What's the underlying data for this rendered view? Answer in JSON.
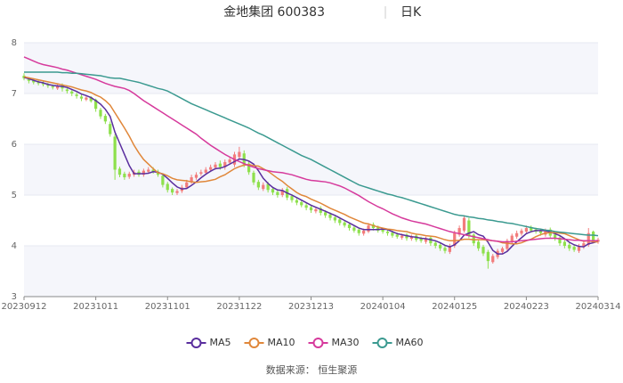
{
  "chart_data": {
    "type": "candlestick",
    "title": "金地集团 600383",
    "period": "日K",
    "source": "数据来源： 恒生聚源",
    "categories": [
      "20230912",
      null,
      null,
      null,
      null,
      null,
      null,
      null,
      null,
      null,
      null,
      null,
      null,
      null,
      null,
      "20231011",
      null,
      null,
      null,
      null,
      null,
      null,
      null,
      null,
      null,
      null,
      null,
      null,
      null,
      null,
      "20231101",
      null,
      null,
      null,
      null,
      null,
      null,
      null,
      null,
      null,
      null,
      null,
      null,
      null,
      null,
      "20231122",
      null,
      null,
      null,
      null,
      null,
      null,
      null,
      null,
      null,
      null,
      null,
      null,
      null,
      null,
      "20231213",
      null,
      null,
      null,
      null,
      null,
      null,
      null,
      null,
      null,
      null,
      null,
      null,
      null,
      null,
      "20240104",
      null,
      null,
      null,
      null,
      null,
      null,
      null,
      null,
      null,
      null,
      null,
      null,
      null,
      null,
      "20240125",
      null,
      null,
      null,
      null,
      null,
      null,
      null,
      null,
      null,
      null,
      null,
      null,
      null,
      null,
      "20240223",
      null,
      null,
      null,
      null,
      null,
      null,
      null,
      null,
      null,
      null,
      null,
      null,
      null,
      null,
      "20240314"
    ],
    "open": [
      7.35,
      7.28,
      7.26,
      7.22,
      7.2,
      7.17,
      7.14,
      7.1,
      7.16,
      7.08,
      7.04,
      6.98,
      6.94,
      6.88,
      6.93,
      6.88,
      6.68,
      6.56,
      6.4,
      6.15,
      5.52,
      5.42,
      5.36,
      5.4,
      5.46,
      5.4,
      5.46,
      5.5,
      5.46,
      5.38,
      5.22,
      5.12,
      5.04,
      5.08,
      5.15,
      5.25,
      5.34,
      5.42,
      5.44,
      5.5,
      5.54,
      5.62,
      5.55,
      5.64,
      5.6,
      5.75,
      5.82,
      5.62,
      5.44,
      5.26,
      5.12,
      5.22,
      5.12,
      5.06,
      5.0,
      5.12,
      4.98,
      4.9,
      4.86,
      4.8,
      4.76,
      4.68,
      4.74,
      4.66,
      4.62,
      4.56,
      4.52,
      4.46,
      4.42,
      4.36,
      4.32,
      4.24,
      4.28,
      4.42,
      4.36,
      4.32,
      4.28,
      4.26,
      4.22,
      4.16,
      4.22,
      4.14,
      4.2,
      4.14,
      4.08,
      4.16,
      4.06,
      4.02,
      3.96,
      3.88,
      4.0,
      4.22,
      4.3,
      4.5,
      4.22,
      4.08,
      3.98,
      3.88,
      3.68,
      3.78,
      3.88,
      3.94,
      4.08,
      4.18,
      4.24,
      4.28,
      4.36,
      4.32,
      4.3,
      4.22,
      4.32,
      4.22,
      4.16,
      4.08,
      4.02,
      3.98,
      3.9,
      3.98,
      4.02,
      4.28,
      4.08
    ],
    "close": [
      7.3,
      7.25,
      7.22,
      7.2,
      7.18,
      7.15,
      7.12,
      7.15,
      7.1,
      7.05,
      7.0,
      6.95,
      6.9,
      6.92,
      6.85,
      6.7,
      6.55,
      6.45,
      6.2,
      5.5,
      5.4,
      5.35,
      5.42,
      5.45,
      5.4,
      5.48,
      5.5,
      5.45,
      5.4,
      5.2,
      5.1,
      5.05,
      5.08,
      5.15,
      5.25,
      5.35,
      5.4,
      5.45,
      5.5,
      5.55,
      5.6,
      5.55,
      5.65,
      5.7,
      5.8,
      5.85,
      5.6,
      5.45,
      5.25,
      5.15,
      5.2,
      5.1,
      5.05,
      5.0,
      5.1,
      4.95,
      4.9,
      4.85,
      4.8,
      4.75,
      4.7,
      4.72,
      4.65,
      4.6,
      4.55,
      4.5,
      4.45,
      4.4,
      4.35,
      4.3,
      4.25,
      4.3,
      4.4,
      4.35,
      4.3,
      4.28,
      4.25,
      4.2,
      4.18,
      4.2,
      4.15,
      4.18,
      4.12,
      4.1,
      4.15,
      4.05,
      4.0,
      3.95,
      3.9,
      4.0,
      4.25,
      4.35,
      4.55,
      4.2,
      4.05,
      3.95,
      3.85,
      3.7,
      3.8,
      3.9,
      3.95,
      4.1,
      4.2,
      4.25,
      4.3,
      4.35,
      4.3,
      4.28,
      4.25,
      4.3,
      4.2,
      4.15,
      4.05,
      4.0,
      3.95,
      3.92,
      4.0,
      4.05,
      4.25,
      4.1,
      4.12
    ],
    "low": [
      7.26,
      7.2,
      7.18,
      7.16,
      7.14,
      7.11,
      7.08,
      7.07,
      7.04,
      7.0,
      6.95,
      6.9,
      6.85,
      6.85,
      6.82,
      6.64,
      6.5,
      6.4,
      6.15,
      5.3,
      5.35,
      5.3,
      5.32,
      5.36,
      5.36,
      5.36,
      5.42,
      5.42,
      5.36,
      5.15,
      5.05,
      5.0,
      5.0,
      5.04,
      5.12,
      5.22,
      5.3,
      5.38,
      5.4,
      5.46,
      5.5,
      5.5,
      5.5,
      5.6,
      5.55,
      5.7,
      5.55,
      5.4,
      5.2,
      5.1,
      5.08,
      5.05,
      5.0,
      4.95,
      4.96,
      4.9,
      4.85,
      4.8,
      4.76,
      4.7,
      4.65,
      4.64,
      4.6,
      4.55,
      4.5,
      4.45,
      4.4,
      4.36,
      4.3,
      4.26,
      4.2,
      4.2,
      4.25,
      4.3,
      4.26,
      4.24,
      4.2,
      4.16,
      4.14,
      4.12,
      4.1,
      4.1,
      4.08,
      4.06,
      4.04,
      4.0,
      3.95,
      3.9,
      3.85,
      3.84,
      3.96,
      4.18,
      4.26,
      4.15,
      4.0,
      3.9,
      3.8,
      3.55,
      3.65,
      3.74,
      3.84,
      3.9,
      4.04,
      4.14,
      4.2,
      4.24,
      4.26,
      4.24,
      4.2,
      4.18,
      4.16,
      4.1,
      4.0,
      3.95,
      3.9,
      3.88,
      3.86,
      3.94,
      3.98,
      4.05,
      4.04
    ],
    "high": [
      7.4,
      7.32,
      7.3,
      7.26,
      7.24,
      7.21,
      7.18,
      7.2,
      7.2,
      7.12,
      7.08,
      7.02,
      6.98,
      6.96,
      6.95,
      6.9,
      6.72,
      6.6,
      6.45,
      6.2,
      5.56,
      5.46,
      5.46,
      5.5,
      5.5,
      5.52,
      5.55,
      5.55,
      5.5,
      5.42,
      5.26,
      5.15,
      5.12,
      5.2,
      5.3,
      5.4,
      5.45,
      5.5,
      5.55,
      5.6,
      5.65,
      5.68,
      5.7,
      5.75,
      5.85,
      5.95,
      5.88,
      5.66,
      5.48,
      5.3,
      5.25,
      5.26,
      5.16,
      5.1,
      5.14,
      5.16,
      5.02,
      4.94,
      4.9,
      4.84,
      4.8,
      4.76,
      4.78,
      4.7,
      4.66,
      4.6,
      4.56,
      4.5,
      4.46,
      4.4,
      4.36,
      4.34,
      4.45,
      4.46,
      4.4,
      4.35,
      4.32,
      4.3,
      4.26,
      4.24,
      4.25,
      4.22,
      4.24,
      4.18,
      4.18,
      4.2,
      4.1,
      4.06,
      4.0,
      4.04,
      4.3,
      4.4,
      4.6,
      4.55,
      4.25,
      4.12,
      4.02,
      3.92,
      3.84,
      3.94,
      3.98,
      4.14,
      4.24,
      4.3,
      4.34,
      4.4,
      4.4,
      4.36,
      4.34,
      4.34,
      4.36,
      4.26,
      4.2,
      4.12,
      4.06,
      4.02,
      4.04,
      4.08,
      4.35,
      4.3,
      4.16
    ],
    "up_color": "#f27c7c",
    "down_color": "#8ee04c",
    "series": [
      {
        "name": "MA5",
        "color": "#5a2e9e",
        "values": [
          7.32,
          7.29,
          7.26,
          7.23,
          7.21,
          7.18,
          7.16,
          7.15,
          7.14,
          7.12,
          7.08,
          7.04,
          6.99,
          6.96,
          6.92,
          6.86,
          6.79,
          6.69,
          6.55,
          6.24,
          6.02,
          5.8,
          5.58,
          5.42,
          5.42,
          5.42,
          5.43,
          5.46,
          5.45,
          5.41,
          5.33,
          5.24,
          5.16,
          5.12,
          5.13,
          5.19,
          5.26,
          5.34,
          5.41,
          5.47,
          5.52,
          5.53,
          5.56,
          5.61,
          5.66,
          5.71,
          5.7,
          5.67,
          5.61,
          5.48,
          5.33,
          5.23,
          5.15,
          5.1,
          5.09,
          5.04,
          5.0,
          4.95,
          4.9,
          4.85,
          4.8,
          4.76,
          4.72,
          4.68,
          4.64,
          4.6,
          4.55,
          4.5,
          4.45,
          4.4,
          4.35,
          4.32,
          4.32,
          4.32,
          4.32,
          4.33,
          4.32,
          4.28,
          4.24,
          4.22,
          4.2,
          4.18,
          4.17,
          4.15,
          4.14,
          4.12,
          4.1,
          4.06,
          4.01,
          3.98,
          4.02,
          4.1,
          4.21,
          4.25,
          4.28,
          4.22,
          4.19,
          4.07,
          3.91,
          3.84,
          3.84,
          3.89,
          3.99,
          4.08,
          4.16,
          4.24,
          4.28,
          4.3,
          4.3,
          4.3,
          4.27,
          4.24,
          4.2,
          4.14,
          4.07,
          4.02,
          3.99,
          3.98,
          4.04,
          4.06,
          4.09
        ]
      },
      {
        "name": "MA10",
        "color": "#e0873a",
        "values": [
          7.33,
          7.31,
          7.29,
          7.27,
          7.25,
          7.23,
          7.21,
          7.19,
          7.17,
          7.15,
          7.13,
          7.1,
          7.07,
          7.05,
          7.02,
          6.97,
          6.93,
          6.86,
          6.77,
          6.62,
          6.47,
          6.32,
          6.16,
          5.98,
          5.83,
          5.7,
          5.61,
          5.52,
          5.44,
          5.42,
          5.38,
          5.33,
          5.3,
          5.29,
          5.28,
          5.26,
          5.25,
          5.26,
          5.27,
          5.29,
          5.31,
          5.36,
          5.4,
          5.46,
          5.52,
          5.56,
          5.59,
          5.6,
          5.58,
          5.57,
          5.52,
          5.47,
          5.4,
          5.33,
          5.27,
          5.19,
          5.12,
          5.05,
          5.0,
          4.97,
          4.92,
          4.88,
          4.84,
          4.79,
          4.74,
          4.7,
          4.66,
          4.62,
          4.57,
          4.53,
          4.49,
          4.45,
          4.43,
          4.4,
          4.37,
          4.35,
          4.33,
          4.32,
          4.3,
          4.29,
          4.28,
          4.25,
          4.23,
          4.22,
          4.2,
          4.19,
          4.18,
          4.15,
          4.12,
          4.1,
          4.1,
          4.11,
          4.13,
          4.13,
          4.12,
          4.12,
          4.12,
          4.11,
          4.1,
          4.09,
          4.06,
          4.05,
          4.04,
          4.04,
          4.06,
          4.1,
          4.13,
          4.18,
          4.22,
          4.25,
          4.26,
          4.26,
          4.25,
          4.24,
          4.2,
          4.16,
          4.12,
          4.09,
          4.1,
          4.08,
          4.08
        ]
      },
      {
        "name": "MA30",
        "color": "#d63a9c",
        "values": [
          7.72,
          7.68,
          7.64,
          7.6,
          7.57,
          7.55,
          7.53,
          7.51,
          7.48,
          7.46,
          7.43,
          7.4,
          7.37,
          7.34,
          7.31,
          7.28,
          7.24,
          7.2,
          7.17,
          7.14,
          7.12,
          7.1,
          7.06,
          7.0,
          6.93,
          6.86,
          6.8,
          6.74,
          6.68,
          6.62,
          6.56,
          6.5,
          6.44,
          6.38,
          6.32,
          6.26,
          6.2,
          6.12,
          6.05,
          5.98,
          5.92,
          5.86,
          5.8,
          5.75,
          5.7,
          5.66,
          5.62,
          5.58,
          5.55,
          5.52,
          5.5,
          5.48,
          5.46,
          5.45,
          5.44,
          5.42,
          5.4,
          5.37,
          5.34,
          5.31,
          5.29,
          5.28,
          5.27,
          5.26,
          5.24,
          5.21,
          5.18,
          5.14,
          5.09,
          5.04,
          4.99,
          4.93,
          4.87,
          4.82,
          4.77,
          4.73,
          4.68,
          4.63,
          4.59,
          4.55,
          4.52,
          4.49,
          4.47,
          4.45,
          4.43,
          4.4,
          4.37,
          4.34,
          4.31,
          4.28,
          4.26,
          4.24,
          4.22,
          4.2,
          4.18,
          4.16,
          4.14,
          4.12,
          4.1,
          4.09,
          4.08,
          4.08,
          4.08,
          4.09,
          4.1,
          4.11,
          4.12,
          4.13,
          4.14,
          4.15,
          4.15,
          4.15,
          4.14,
          4.13,
          4.12,
          4.11,
          4.11,
          4.1,
          4.1,
          4.1,
          4.1
        ]
      },
      {
        "name": "MA60",
        "color": "#3b9a90",
        "values": [
          7.42,
          7.42,
          7.42,
          7.42,
          7.42,
          7.42,
          7.42,
          7.42,
          7.41,
          7.41,
          7.4,
          7.4,
          7.39,
          7.38,
          7.37,
          7.36,
          7.35,
          7.33,
          7.31,
          7.3,
          7.3,
          7.28,
          7.26,
          7.24,
          7.22,
          7.19,
          7.16,
          7.13,
          7.1,
          7.08,
          7.05,
          7.0,
          6.95,
          6.9,
          6.85,
          6.8,
          6.76,
          6.72,
          6.68,
          6.64,
          6.6,
          6.56,
          6.52,
          6.48,
          6.44,
          6.4,
          6.36,
          6.32,
          6.27,
          6.22,
          6.18,
          6.13,
          6.08,
          6.03,
          5.98,
          5.93,
          5.88,
          5.83,
          5.78,
          5.74,
          5.7,
          5.65,
          5.6,
          5.55,
          5.5,
          5.45,
          5.4,
          5.35,
          5.3,
          5.25,
          5.2,
          5.17,
          5.14,
          5.11,
          5.08,
          5.05,
          5.02,
          5.0,
          4.97,
          4.95,
          4.92,
          4.89,
          4.86,
          4.83,
          4.8,
          4.77,
          4.74,
          4.71,
          4.68,
          4.65,
          4.62,
          4.6,
          4.59,
          4.57,
          4.56,
          4.54,
          4.53,
          4.51,
          4.5,
          4.48,
          4.47,
          4.45,
          4.44,
          4.42,
          4.4,
          4.38,
          4.36,
          4.34,
          4.33,
          4.31,
          4.3,
          4.28,
          4.27,
          4.26,
          4.25,
          4.24,
          4.23,
          4.22,
          4.21,
          4.21,
          4.2
        ]
      }
    ],
    "ylim": [
      3,
      8
    ],
    "yticks": [
      3,
      4,
      5,
      6,
      7,
      8
    ],
    "grid": true,
    "split_area": true,
    "legend": "bottom"
  }
}
